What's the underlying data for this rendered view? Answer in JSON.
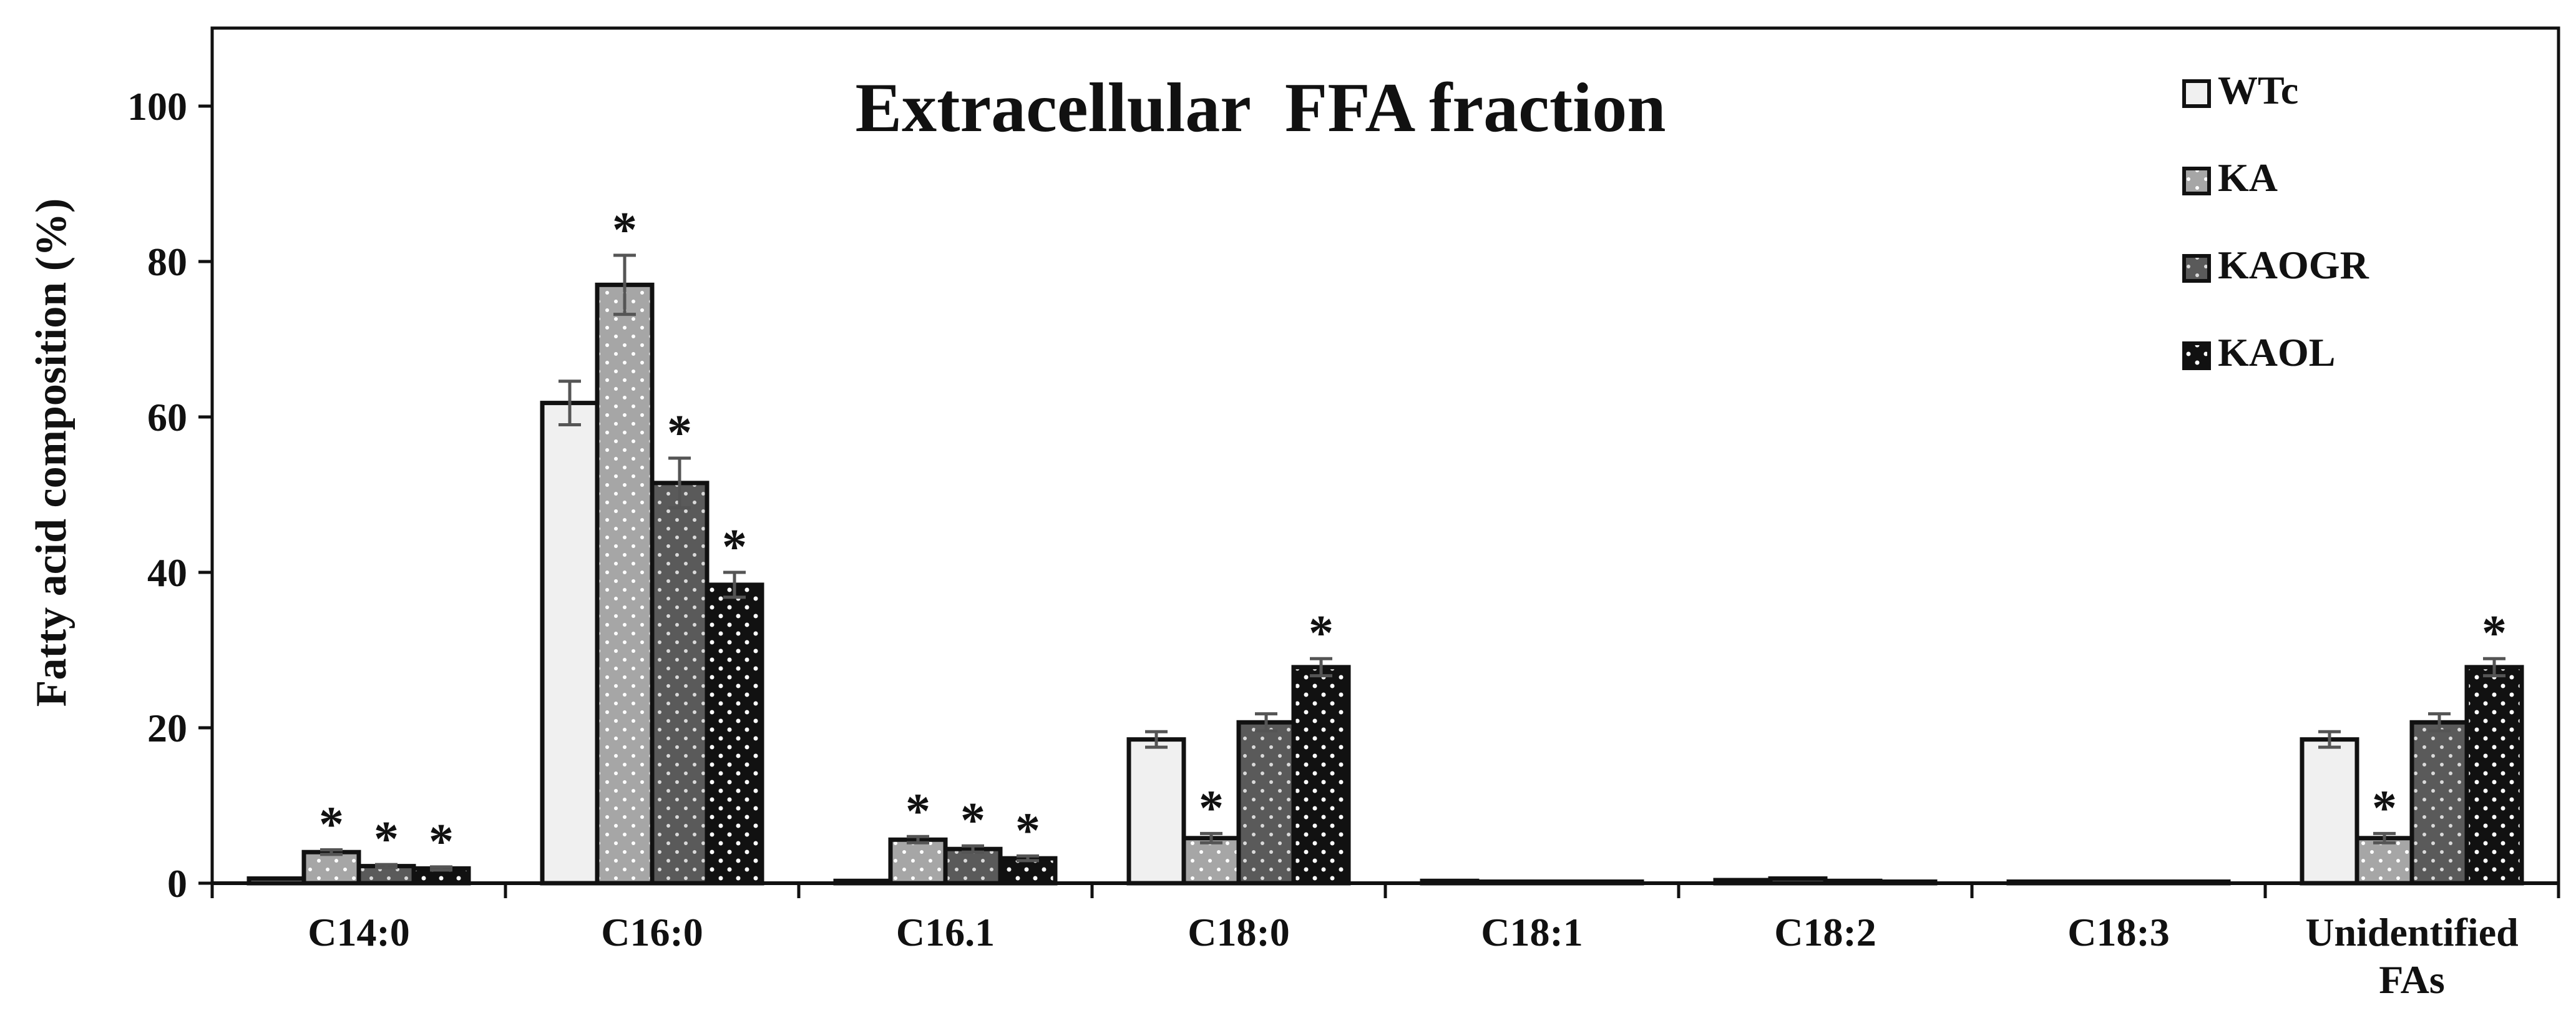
{
  "chart_data": {
    "type": "bar",
    "title": "Extracellular  FFA fraction",
    "ylabel": "Fatty acid composition (%)",
    "xlabel": "",
    "ylim": [
      0,
      100
    ],
    "yticks": [
      "0",
      "20",
      "40",
      "60",
      "80",
      "100"
    ],
    "grid": false,
    "legend_position": "top-right",
    "categories": [
      "C14:0",
      "C16:0",
      "C16.1",
      "C18:0",
      "C18:1",
      "C18:2",
      "C18:3",
      "Unidentified FAs"
    ],
    "series": [
      {
        "name": "WTc",
        "fill": "#f0f0f0",
        "pattern": "none",
        "values": [
          0.6,
          61.8,
          0.3,
          18.5,
          0.3,
          0.4,
          0.2,
          18.5
        ],
        "errors": [
          0,
          2.8,
          0,
          1.0,
          0,
          0,
          0,
          1.0
        ],
        "significant": [
          false,
          false,
          false,
          false,
          false,
          false,
          false,
          false
        ]
      },
      {
        "name": "KA",
        "fill": "#a6a6a6",
        "pattern": "dots",
        "values": [
          4.0,
          77.0,
          5.6,
          5.8,
          0.2,
          0.6,
          0.2,
          5.8
        ],
        "errors": [
          0.3,
          3.8,
          0.4,
          0.6,
          0,
          0,
          0,
          0.6
        ],
        "significant": [
          true,
          true,
          true,
          true,
          false,
          false,
          false,
          true
        ]
      },
      {
        "name": "KAOGR",
        "fill": "#5a5a5a",
        "pattern": "dots",
        "values": [
          2.2,
          51.5,
          4.4,
          20.7,
          0.2,
          0.3,
          0.2,
          20.7
        ],
        "errors": [
          0.2,
          3.2,
          0.4,
          1.1,
          0,
          0,
          0,
          1.1
        ],
        "significant": [
          true,
          true,
          true,
          false,
          false,
          false,
          false,
          false
        ]
      },
      {
        "name": "KAOL",
        "fill": "#111111",
        "pattern": "dots",
        "values": [
          1.9,
          38.4,
          3.2,
          27.8,
          0.2,
          0.2,
          0.2,
          27.8
        ],
        "errors": [
          0.2,
          1.6,
          0.3,
          1.1,
          0,
          0,
          0,
          1.1
        ],
        "significant": [
          true,
          true,
          true,
          true,
          false,
          false,
          false,
          true
        ]
      }
    ],
    "annotation_symbol": "*"
  }
}
